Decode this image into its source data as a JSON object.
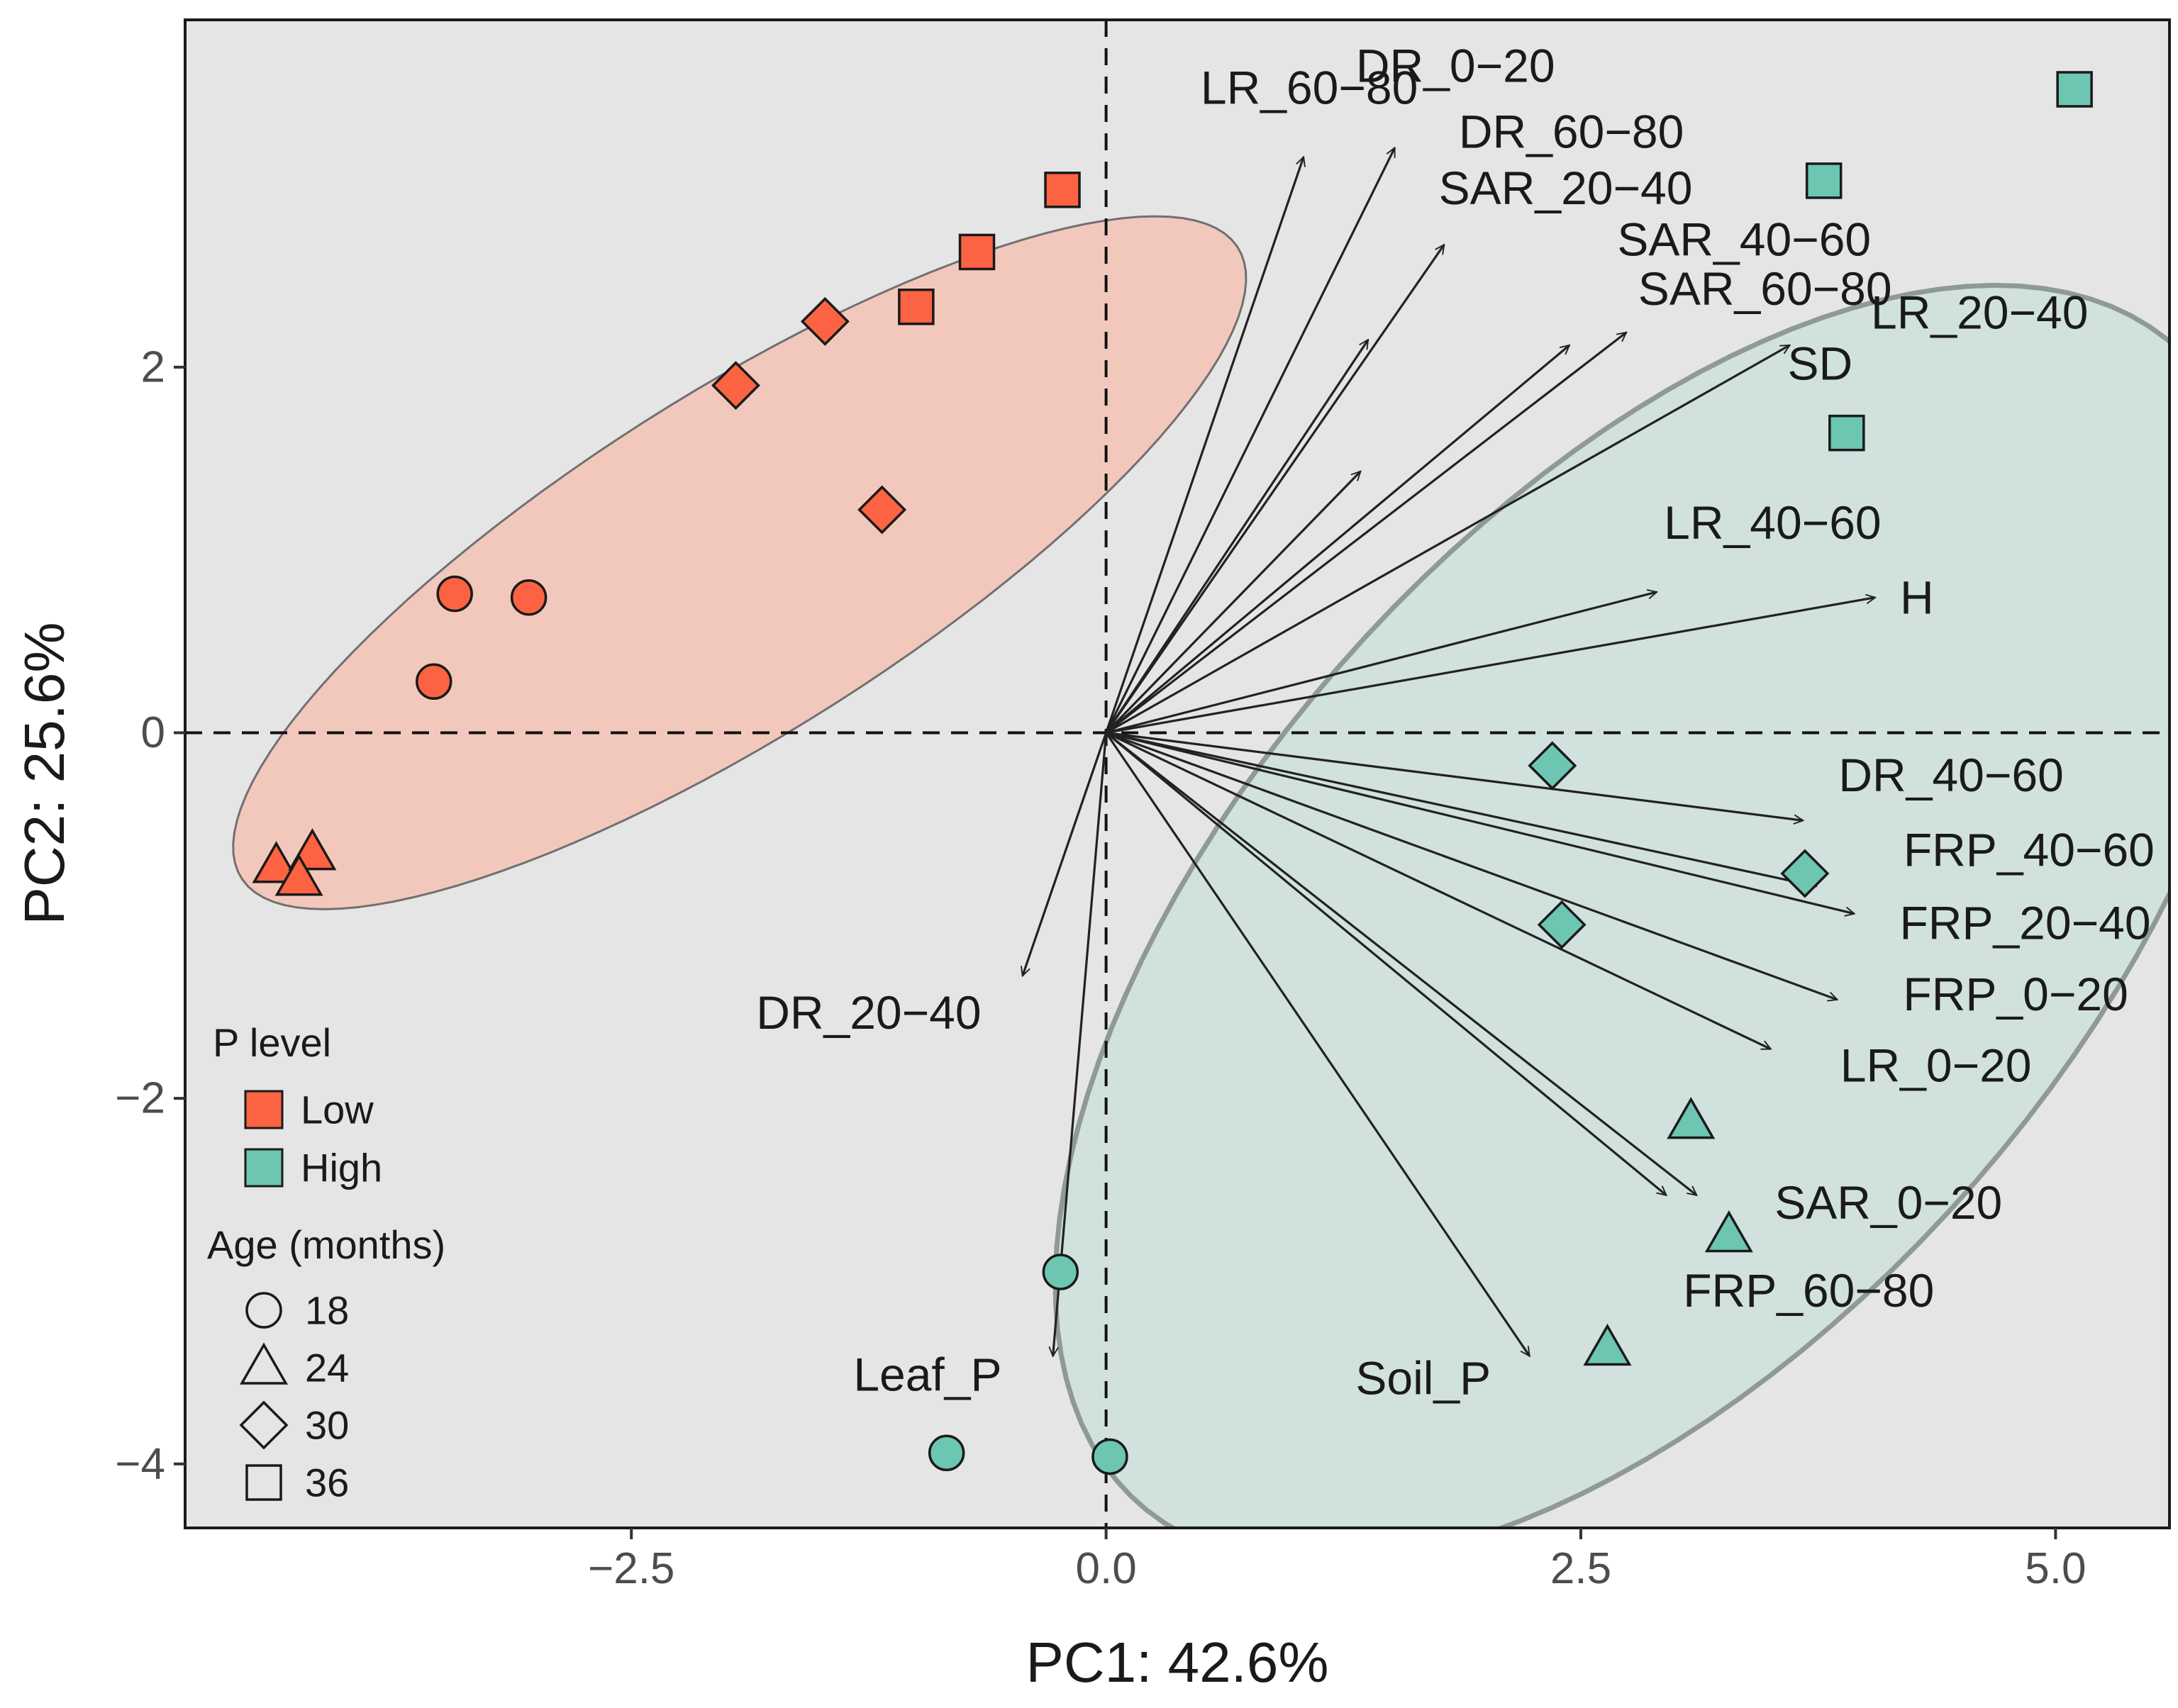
{
  "chart_data": {
    "type": "scatter",
    "subtype": "pca-biplot",
    "xlabel": "PC1: 42.6%",
    "ylabel": "PC2: 25.6%",
    "xlim": [
      -4.85,
      5.6
    ],
    "ylim": [
      -4.35,
      3.9
    ],
    "xticks": [
      -2.5,
      0.0,
      2.5,
      5.0
    ],
    "xtick_labels": [
      "−2.5",
      "0.0",
      "2.5",
      "5.0"
    ],
    "yticks": [
      -4,
      -2,
      0,
      2
    ],
    "ytick_labels": [
      "−4",
      "−2",
      "0",
      "2"
    ],
    "grid": false,
    "reference_lines": [
      {
        "axis": "x",
        "value": 0,
        "style": "dashed"
      },
      {
        "axis": "y",
        "value": 0,
        "style": "dashed"
      }
    ],
    "colors": {
      "panel_bg": "#e5e5e5",
      "Low": "#fc6343",
      "High": "#6cc6b2",
      "ellipse_low_fill": "#f3c8bc",
      "ellipse_high_fill": "#d1e1de",
      "ellipse_low_stroke": "#707070",
      "ellipse_high_stroke": "#8f9a98",
      "arrow": "#222222"
    },
    "ellipses": [
      {
        "group": "Low",
        "center": [
          -1.93,
          0.93
        ],
        "semi_axes": [
          3.14,
          0.92
        ],
        "angle_deg": 33.5
      },
      {
        "group": "High",
        "center": [
          2.9,
          -1.05
        ],
        "semi_axes": [
          4.18,
          2.19
        ],
        "angle_deg": 50
      }
    ],
    "points": [
      {
        "group": "Low",
        "age": "36",
        "x": -0.23,
        "y": 2.97
      },
      {
        "group": "Low",
        "age": "36",
        "x": -0.68,
        "y": 2.63
      },
      {
        "group": "Low",
        "age": "36",
        "x": -1.0,
        "y": 2.33
      },
      {
        "group": "Low",
        "age": "30",
        "x": -1.48,
        "y": 2.25
      },
      {
        "group": "Low",
        "age": "30",
        "x": -1.95,
        "y": 1.9
      },
      {
        "group": "Low",
        "age": "30",
        "x": -1.18,
        "y": 1.22
      },
      {
        "group": "Low",
        "age": "18",
        "x": -3.43,
        "y": 0.76
      },
      {
        "group": "Low",
        "age": "18",
        "x": -3.04,
        "y": 0.74
      },
      {
        "group": "Low",
        "age": "18",
        "x": -3.54,
        "y": 0.28
      },
      {
        "group": "Low",
        "age": "24",
        "x": -4.37,
        "y": -0.73
      },
      {
        "group": "Low",
        "age": "24",
        "x": -4.18,
        "y": -0.66
      },
      {
        "group": "Low",
        "age": "24",
        "x": -4.25,
        "y": -0.8
      },
      {
        "group": "High",
        "age": "36",
        "x": 5.1,
        "y": 3.52
      },
      {
        "group": "High",
        "age": "36",
        "x": 3.78,
        "y": 3.02
      },
      {
        "group": "High",
        "age": "36",
        "x": 3.9,
        "y": 1.64
      },
      {
        "group": "High",
        "age": "30",
        "x": 2.35,
        "y": -0.18
      },
      {
        "group": "High",
        "age": "30",
        "x": 3.68,
        "y": -0.77
      },
      {
        "group": "High",
        "age": "30",
        "x": 2.4,
        "y": -1.05
      },
      {
        "group": "High",
        "age": "24",
        "x": 3.08,
        "y": -2.13
      },
      {
        "group": "High",
        "age": "24",
        "x": 3.28,
        "y": -2.75
      },
      {
        "group": "High",
        "age": "24",
        "x": 2.64,
        "y": -3.37
      },
      {
        "group": "High",
        "age": "18",
        "x": -0.24,
        "y": -2.95
      },
      {
        "group": "High",
        "age": "18",
        "x": -0.84,
        "y": -3.94
      },
      {
        "group": "High",
        "age": "18",
        "x": 0.02,
        "y": -3.96
      }
    ],
    "vectors": [
      {
        "name": "LR_60−80",
        "x": 1.04,
        "y": 3.15,
        "label_x": 1.07,
        "label_y": 3.53
      },
      {
        "name": "DR_0−20",
        "x": 1.52,
        "y": 3.2,
        "label_x": 1.84,
        "label_y": 3.65
      },
      {
        "name": "DR_60−80",
        "x": 1.78,
        "y": 2.67,
        "label_x": 2.45,
        "label_y": 3.29
      },
      {
        "name": "SAR_20−40",
        "x": 1.38,
        "y": 2.15,
        "label_x": 2.42,
        "label_y": 2.98
      },
      {
        "name": "SAR_40−60",
        "x": 2.44,
        "y": 2.12,
        "label_x": 3.36,
        "label_y": 2.7
      },
      {
        "name": "SAR_60−80",
        "x": 2.74,
        "y": 2.19,
        "label_x": 3.47,
        "label_y": 2.43
      },
      {
        "name": "LR_20−40",
        "x": 3.6,
        "y": 2.12,
        "label_x": 4.6,
        "label_y": 2.3
      },
      {
        "name": "SD",
        "x": 1.34,
        "y": 1.43,
        "label_x": 3.76,
        "label_y": 2.02
      },
      {
        "name": "LR_40−60",
        "x": 2.9,
        "y": 0.77,
        "label_x": 3.51,
        "label_y": 1.15
      },
      {
        "name": "H",
        "x": 4.05,
        "y": 0.74,
        "label_x": 4.27,
        "label_y": 0.74
      },
      {
        "name": "DR_40−60",
        "x": 3.67,
        "y": -0.48,
        "label_x": 4.45,
        "label_y": -0.23
      },
      {
        "name": "FRP_40−60",
        "x": 3.74,
        "y": -0.84,
        "label_x": 4.86,
        "label_y": -0.64
      },
      {
        "name": "FRP_20−40",
        "x": 3.94,
        "y": -0.99,
        "label_x": 4.84,
        "label_y": -1.04
      },
      {
        "name": "FRP_0−20",
        "x": 3.85,
        "y": -1.46,
        "label_x": 4.79,
        "label_y": -1.43
      },
      {
        "name": "LR_0−20",
        "x": 3.5,
        "y": -1.73,
        "label_x": 4.37,
        "label_y": -1.82
      },
      {
        "name": "SAR_0−20",
        "x": 2.95,
        "y": -2.53,
        "label_x": 4.12,
        "label_y": -2.57
      },
      {
        "name": "FRP_60−80",
        "x": 3.11,
        "y": -2.53,
        "label_x": 3.7,
        "label_y": -3.05
      },
      {
        "name": "Soil_P",
        "x": 2.23,
        "y": -3.41,
        "label_x": 1.67,
        "label_y": -3.53
      },
      {
        "name": "DR_20−40",
        "x": -0.44,
        "y": -1.33,
        "label_x": -1.25,
        "label_y": -1.53
      },
      {
        "name": "Leaf_P",
        "x": -0.28,
        "y": -3.41,
        "label_x": -0.94,
        "label_y": -3.51
      }
    ],
    "legend": {
      "placement": "bottom-left inside",
      "color_title": "P level",
      "color_items": [
        {
          "label": "Low",
          "color": "#fc6343"
        },
        {
          "label": "High",
          "color": "#6cc6b2"
        }
      ],
      "shape_title": "Age (months)",
      "shape_items": [
        {
          "label": "18",
          "shape": "circle"
        },
        {
          "label": "24",
          "shape": "triangle"
        },
        {
          "label": "30",
          "shape": "diamond"
        },
        {
          "label": "36",
          "shape": "square"
        }
      ]
    }
  }
}
